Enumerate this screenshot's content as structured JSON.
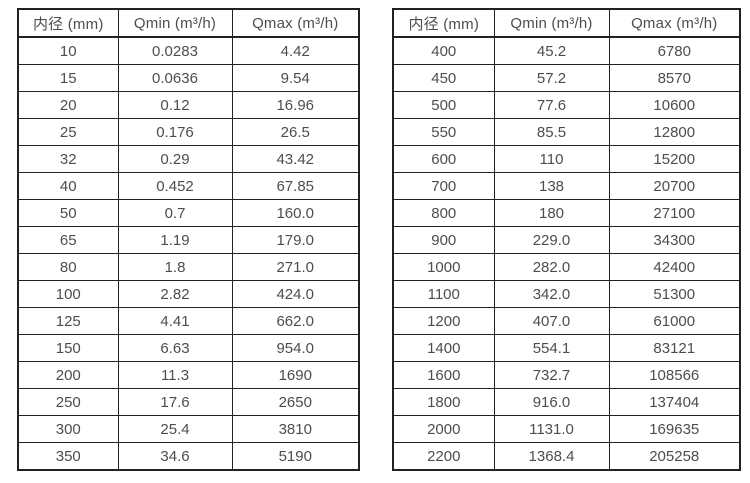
{
  "page": {
    "background_color": "#ffffff",
    "text_color": "#4d4d4d",
    "border_color": "#212121"
  },
  "tables": [
    {
      "name": "flow-rate-table-small-diameters",
      "headers": [
        "内径 (mm)",
        "Qmin (m³/h)",
        "Qmax (m³/h)"
      ],
      "rows": [
        [
          "10",
          "0.0283",
          "4.42"
        ],
        [
          "15",
          "0.0636",
          "9.54"
        ],
        [
          "20",
          "0.12",
          "16.96"
        ],
        [
          "25",
          "0.176",
          "26.5"
        ],
        [
          "32",
          "0.29",
          "43.42"
        ],
        [
          "40",
          "0.452",
          "67.85"
        ],
        [
          "50",
          "0.7",
          "160.0"
        ],
        [
          "65",
          "1.19",
          "179.0"
        ],
        [
          "80",
          "1.8",
          "271.0"
        ],
        [
          "100",
          "2.82",
          "424.0"
        ],
        [
          "125",
          "4.41",
          "662.0"
        ],
        [
          "150",
          "6.63",
          "954.0"
        ],
        [
          "200",
          "11.3",
          "1690"
        ],
        [
          "250",
          "17.6",
          "2650"
        ],
        [
          "300",
          "25.4",
          "3810"
        ],
        [
          "350",
          "34.6",
          "5190"
        ]
      ]
    },
    {
      "name": "flow-rate-table-large-diameters",
      "headers": [
        "内径 (mm)",
        "Qmin (m³/h)",
        "Qmax (m³/h)"
      ],
      "rows": [
        [
          "400",
          "45.2",
          "6780"
        ],
        [
          "450",
          "57.2",
          "8570"
        ],
        [
          "500",
          "77.6",
          "10600"
        ],
        [
          "550",
          "85.5",
          "12800"
        ],
        [
          "600",
          "110",
          "15200"
        ],
        [
          "700",
          "138",
          "20700"
        ],
        [
          "800",
          "180",
          "27100"
        ],
        [
          "900",
          "229.0",
          "34300"
        ],
        [
          "1000",
          "282.0",
          "42400"
        ],
        [
          "1100",
          "342.0",
          "51300"
        ],
        [
          "1200",
          "407.0",
          "61000"
        ],
        [
          "1400",
          "554.1",
          "83121"
        ],
        [
          "1600",
          "732.7",
          "108566"
        ],
        [
          "1800",
          "916.0",
          "137404"
        ],
        [
          "2000",
          "1131.0",
          "169635"
        ],
        [
          "2200",
          "1368.4",
          "205258"
        ]
      ]
    }
  ]
}
